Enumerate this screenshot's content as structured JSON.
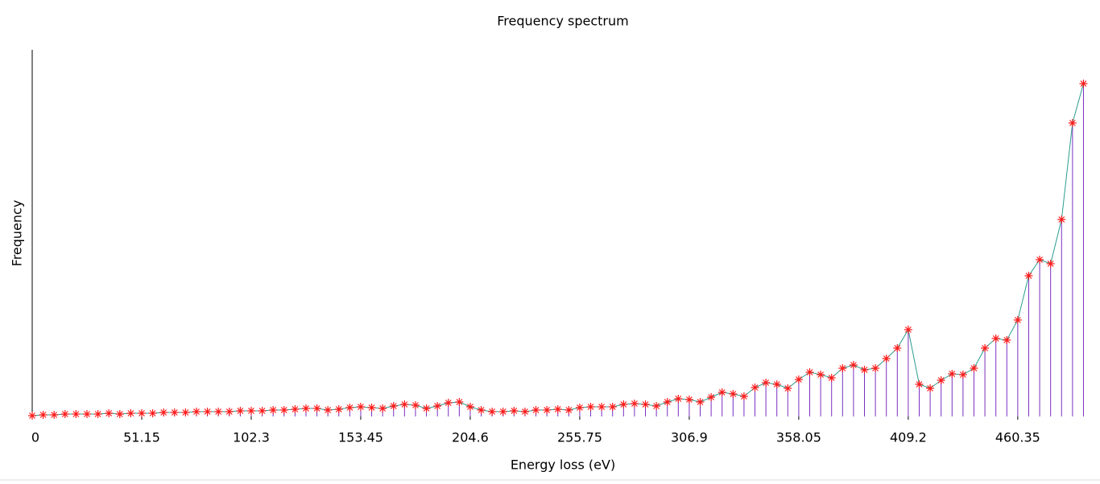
{
  "chart_data": {
    "type": "stem",
    "title": "Frequency spectrum",
    "x_label": "Energy loss (eV)",
    "y_label": "Frequency",
    "x": [
      0,
      5.115,
      10.23,
      15.345,
      20.46,
      25.575,
      30.69,
      35.805,
      40.92,
      46.035,
      51.15,
      56.265,
      61.38,
      66.495,
      71.61,
      76.725,
      81.84,
      86.955,
      92.07,
      97.185,
      102.3,
      107.415,
      112.53,
      117.645,
      122.76,
      127.875,
      132.99,
      138.105,
      143.22,
      148.335,
      153.45,
      158.565,
      163.68,
      168.795,
      173.91,
      179.025,
      184.14,
      189.255,
      194.37,
      199.485,
      204.6,
      209.715,
      214.83,
      219.945,
      225.06,
      230.175,
      235.29,
      240.405,
      245.52,
      250.635,
      255.75,
      260.865,
      265.98,
      271.095,
      276.21,
      281.325,
      286.44,
      291.555,
      296.67,
      301.785,
      306.9,
      312.015,
      317.13,
      322.245,
      327.36,
      332.475,
      337.59,
      342.705,
      347.82,
      352.935,
      358.05,
      363.165,
      368.28,
      373.395,
      378.51,
      383.625,
      388.74,
      393.855,
      398.97,
      404.085,
      409.2,
      414.315,
      419.43,
      424.545,
      429.66,
      434.775,
      439.89,
      445.005,
      450.12,
      455.235,
      460.35,
      465.465,
      470.58,
      475.695,
      480.81,
      485.925,
      491.04
    ],
    "values": [
      1,
      2,
      2,
      3,
      3,
      3,
      3,
      4,
      3,
      4,
      4,
      4,
      5,
      5,
      5,
      6,
      6,
      6,
      6,
      7,
      7,
      7,
      8,
      8,
      9,
      10,
      10,
      8,
      9,
      11,
      12,
      11,
      10,
      13,
      15,
      14,
      10,
      13,
      17,
      18,
      12,
      8,
      6,
      6,
      7,
      6,
      8,
      8,
      9,
      8,
      11,
      12,
      12,
      12,
      15,
      16,
      15,
      13,
      18,
      22,
      21,
      18,
      24,
      30,
      28,
      25,
      36,
      42,
      40,
      35,
      46,
      55,
      52,
      48,
      60,
      64,
      58,
      60,
      72,
      85,
      108,
      40,
      35,
      45,
      53,
      52,
      60,
      85,
      97,
      95,
      120,
      175,
      195,
      190,
      245,
      365,
      414
    ],
    "xlim": [
      0,
      495
    ],
    "ylim": [
      0,
      456
    ],
    "xticks": [
      0,
      51.15,
      102.3,
      153.45,
      204.6,
      255.75,
      306.9,
      358.05,
      409.2,
      460.35
    ],
    "stem_color": "#7a2fc0",
    "line_color": "#2a9d8f",
    "marker_color": "#ff1a1a"
  }
}
